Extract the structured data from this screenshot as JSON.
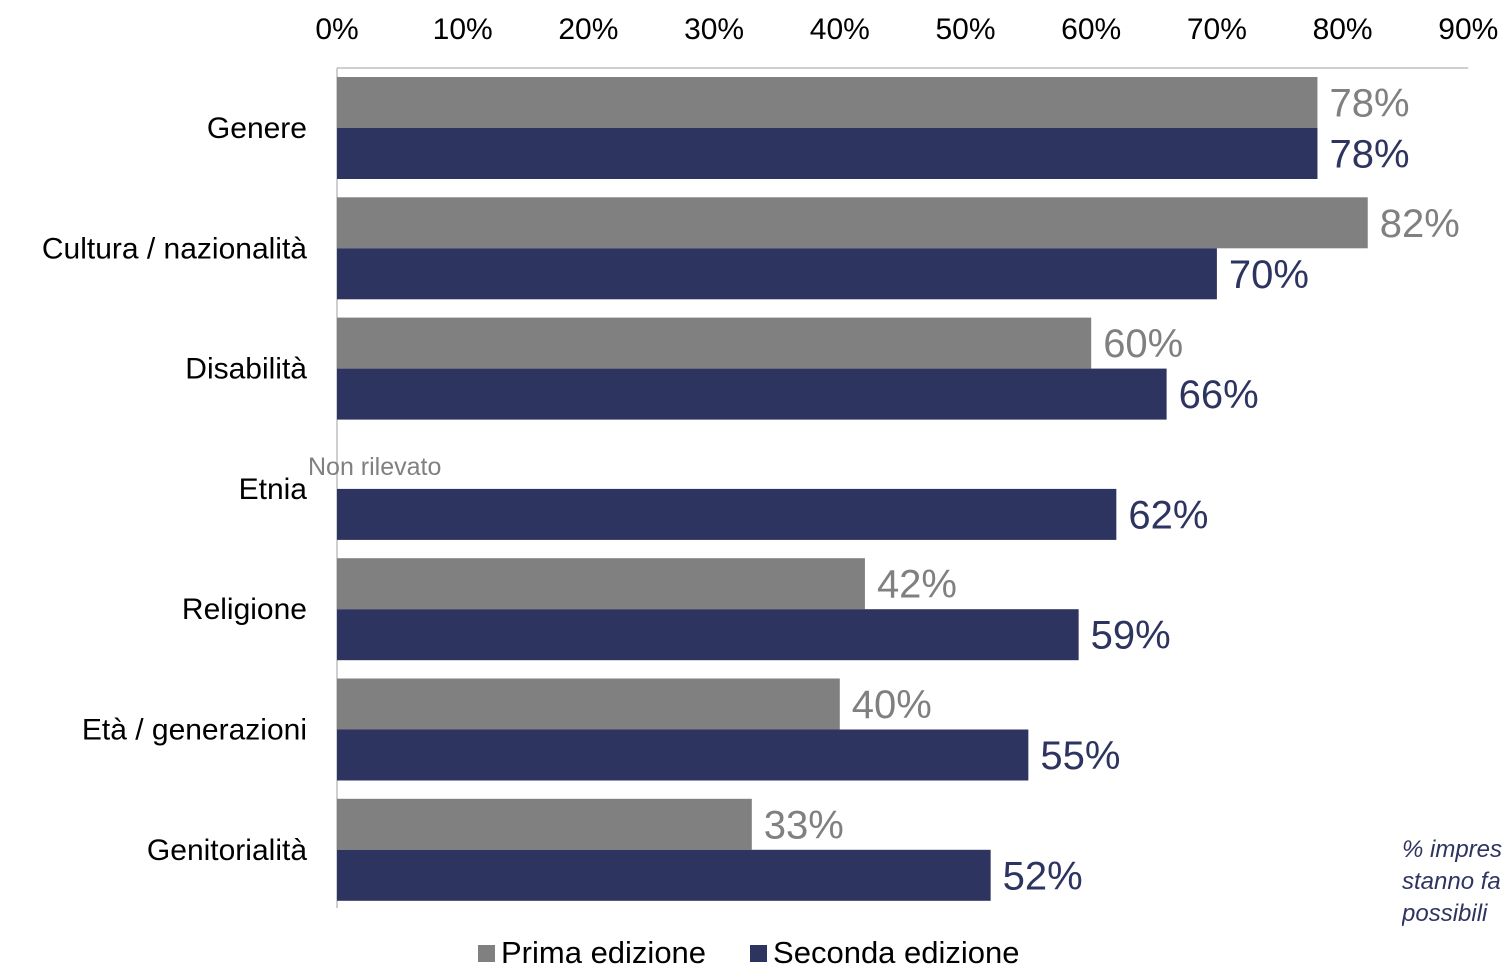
{
  "chart_data": {
    "type": "bar",
    "orientation": "horizontal",
    "categories": [
      "Genere",
      "Cultura / nazionalità",
      "Disabilità",
      "Etnia",
      "Religione",
      "Età / generazioni",
      "Genitorialità"
    ],
    "series": [
      {
        "name": "Prima edizione",
        "color": "#808080",
        "values": [
          78,
          82,
          60,
          null,
          42,
          40,
          33
        ]
      },
      {
        "name": "Seconda edizione",
        "color": "#2e3460",
        "values": [
          78,
          70,
          66,
          62,
          59,
          55,
          52
        ]
      }
    ],
    "value_suffix": "%",
    "xlim": [
      0,
      90
    ],
    "xticks": [
      "0%",
      "10%",
      "20%",
      "30%",
      "40%",
      "50%",
      "60%",
      "70%",
      "80%",
      "90%"
    ],
    "xaxis_position": "top",
    "grid": false,
    "legend_position": "bottom",
    "missing_label": "Non rilevato",
    "note_lines": [
      "% impres",
      "stanno fa",
      "possibili"
    ]
  }
}
